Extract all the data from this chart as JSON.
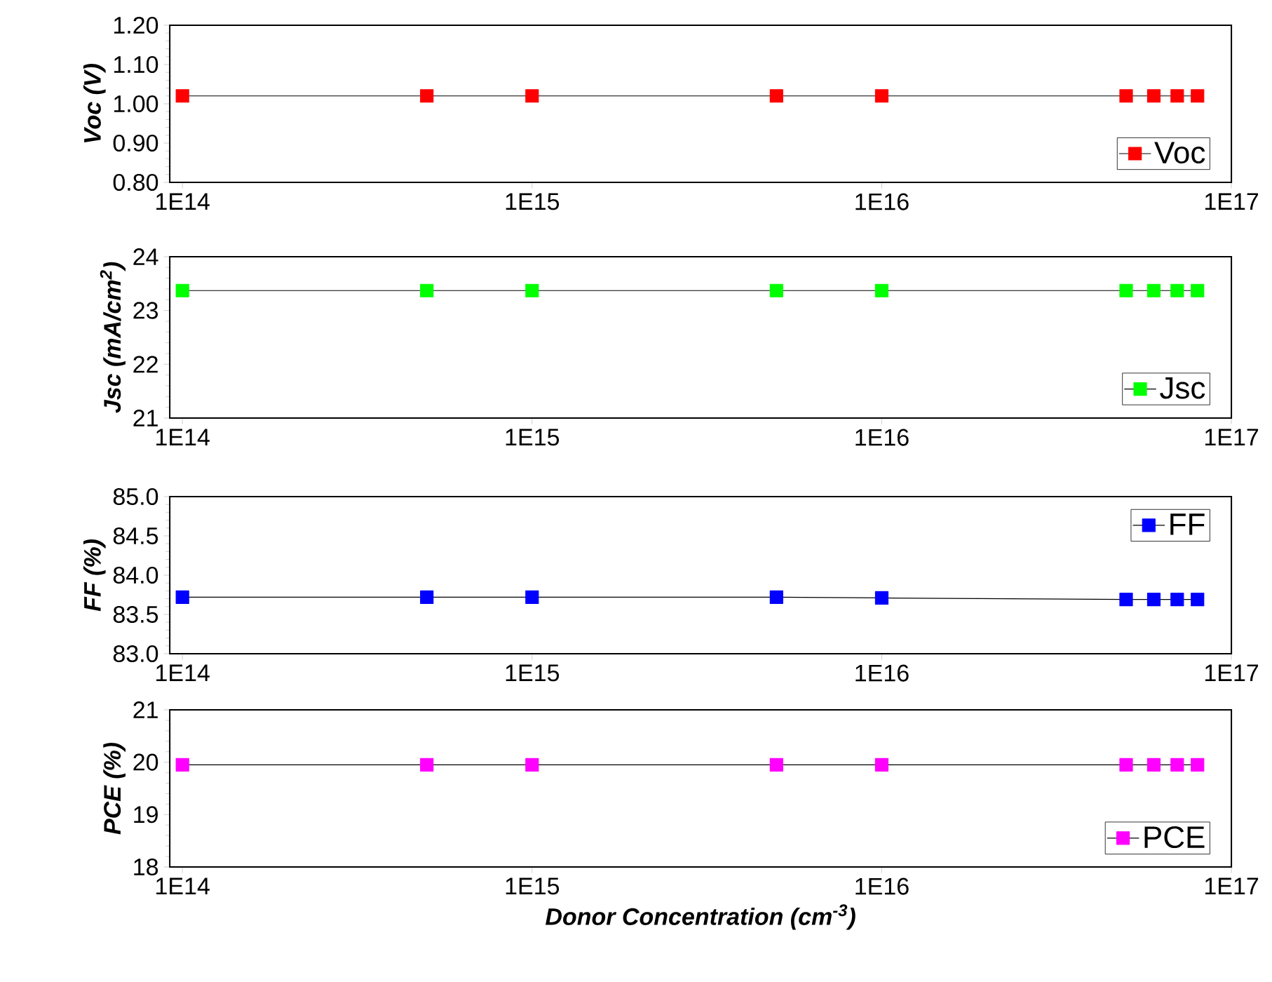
{
  "chart_data": [
    {
      "type": "line",
      "x": [
        100000000000000.0,
        500000000000000.0,
        1000000000000000.0,
        5000000000000000.0,
        1e+16,
        5e+16,
        6e+16,
        7e+16,
        8e+16
      ],
      "log": "x",
      "marker": "square",
      "legend": "bottom right",
      "ylabel": "Voc (V)",
      "series": [
        {
          "name": "Voc",
          "color": "#ff0000",
          "values": [
            1.02,
            1.02,
            1.02,
            1.02,
            1.02,
            1.02,
            1.02,
            1.02,
            1.02
          ]
        }
      ],
      "xlim": [
        92000000000000.0,
        1e+17
      ],
      "ylim": [
        0.8,
        1.2
      ],
      "xticks": [
        {
          "value": 100000000000000.0,
          "label": "1E14"
        },
        {
          "value": 1000000000000000.0,
          "label": "1E15"
        },
        {
          "value": 1e+16,
          "label": "1E16"
        },
        {
          "value": 1e+17,
          "label": "1E17"
        }
      ],
      "yticks": [
        {
          "value": 0.8,
          "label": "0.80"
        },
        {
          "value": 0.9,
          "label": "0.90"
        },
        {
          "value": 1.0,
          "label": "1.00"
        },
        {
          "value": 1.1,
          "label": "1.10"
        },
        {
          "value": 1.2,
          "label": "1.20"
        }
      ]
    },
    {
      "type": "line",
      "x": [
        100000000000000.0,
        500000000000000.0,
        1000000000000000.0,
        5000000000000000.0,
        1e+16,
        5e+16,
        6e+16,
        7e+16,
        8e+16
      ],
      "log": "x",
      "marker": "square",
      "legend": "bottom right",
      "ylabel": "Jsc (mA/cm$^{2}$)",
      "series": [
        {
          "name": "Jsc",
          "color": "#00ff00",
          "values": [
            23.37,
            23.37,
            23.37,
            23.37,
            23.37,
            23.37,
            23.37,
            23.37,
            23.37
          ]
        }
      ],
      "xlim": [
        92000000000000.0,
        1e+17
      ],
      "ylim": [
        21,
        24
      ],
      "xticks": [
        {
          "value": 100000000000000.0,
          "label": "1E14"
        },
        {
          "value": 1000000000000000.0,
          "label": "1E15"
        },
        {
          "value": 1e+16,
          "label": "1E16"
        },
        {
          "value": 1e+17,
          "label": "1E17"
        }
      ],
      "yticks": [
        21,
        22,
        23,
        24
      ]
    },
    {
      "type": "line",
      "x": [
        100000000000000.0,
        500000000000000.0,
        1000000000000000.0,
        5000000000000000.0,
        1e+16,
        5e+16,
        6e+16,
        7e+16,
        8e+16
      ],
      "log": "x",
      "marker": "square",
      "legend": "top right",
      "ylabel": "FF (%)",
      "series": [
        {
          "name": "FF",
          "color": "#0000ff",
          "values": [
            83.72,
            83.72,
            83.72,
            83.72,
            83.71,
            83.69,
            83.69,
            83.69,
            83.69
          ]
        }
      ],
      "xlim": [
        92000000000000.0,
        1e+17
      ],
      "ylim": [
        83.0,
        85.0
      ],
      "xticks": [
        {
          "value": 100000000000000.0,
          "label": "1E14"
        },
        {
          "value": 1000000000000000.0,
          "label": "1E15"
        },
        {
          "value": 1e+16,
          "label": "1E16"
        },
        {
          "value": 1e+17,
          "label": "1E17"
        }
      ],
      "yticks": [
        {
          "value": 83.0,
          "label": "83.0"
        },
        {
          "value": 83.5,
          "label": "83.5"
        },
        {
          "value": 84.0,
          "label": "84.0"
        },
        {
          "value": 84.5,
          "label": "84.5"
        },
        {
          "value": 85.0,
          "label": "85.0"
        }
      ]
    },
    {
      "type": "line",
      "x": [
        100000000000000.0,
        500000000000000.0,
        1000000000000000.0,
        5000000000000000.0,
        1e+16,
        5e+16,
        6e+16,
        7e+16,
        8e+16
      ],
      "log": "x",
      "marker": "square",
      "legend": "bottom right",
      "ylabel": "PCE (%)",
      "xlabel": "Donor Concentration (cm$^{-3}$)",
      "series": [
        {
          "name": "PCE",
          "color": "#ff00ff",
          "values": [
            19.95,
            19.95,
            19.95,
            19.95,
            19.95,
            19.95,
            19.95,
            19.95,
            19.95
          ]
        }
      ],
      "xlim": [
        92000000000000.0,
        1e+17
      ],
      "ylim": [
        18,
        21
      ],
      "xticks": [
        {
          "value": 100000000000000.0,
          "label": "1E14"
        },
        {
          "value": 1000000000000000.0,
          "label": "1E15"
        },
        {
          "value": 1e+16,
          "label": "1E16"
        },
        {
          "value": 1e+17,
          "label": "1E17"
        }
      ],
      "yticks": [
        18,
        19,
        20,
        21
      ]
    }
  ]
}
